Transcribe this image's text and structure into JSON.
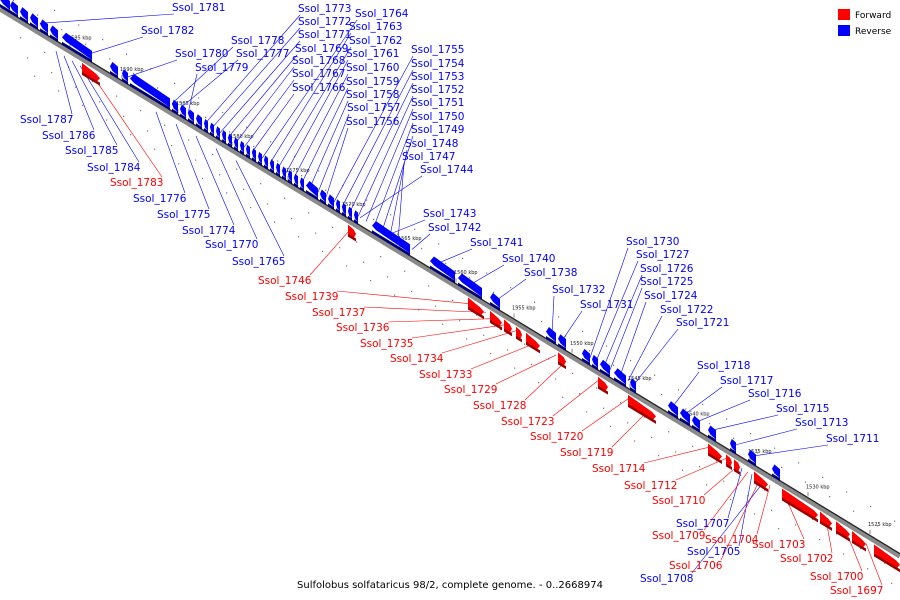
{
  "caption": "Sulfolobus solfataricus 98/2, complete genome. - 0..2668974",
  "legend": [
    {
      "label": "Forward",
      "color": "#ff0000"
    },
    {
      "label": "Reverse",
      "color": "#0000ff"
    }
  ],
  "colors": {
    "forward": "#ff0000",
    "reverse": "#0000ff",
    "line": "#888888"
  },
  "ticks": [
    "1595 kbp",
    "1590 kbp",
    "1585 kbp",
    "1580 kbp",
    "1575 kbp",
    "1570 kbp",
    "1565 kbp",
    "1560 kbp",
    "1555 kbp",
    "1550 kbp",
    "1545 kbp",
    "1540 kbp",
    "1535 kbp",
    "1530 kbp",
    "1525 kbp"
  ],
  "genes_above": [
    {
      "name": "Ssol_1781",
      "strand": "reverse"
    },
    {
      "name": "Ssol_1782",
      "strand": "reverse"
    },
    {
      "name": "Ssol_1780",
      "strand": "reverse"
    },
    {
      "name": "Ssol_1778",
      "strand": "reverse"
    },
    {
      "name": "Ssol_1777",
      "strand": "reverse"
    },
    {
      "name": "Ssol_1779",
      "strand": "reverse"
    },
    {
      "name": "Ssol_1773",
      "strand": "reverse"
    },
    {
      "name": "Ssol_1772",
      "strand": "reverse"
    },
    {
      "name": "Ssol_1771",
      "strand": "reverse"
    },
    {
      "name": "Ssol_1769",
      "strand": "reverse"
    },
    {
      "name": "Ssol_1768",
      "strand": "reverse"
    },
    {
      "name": "Ssol_1767",
      "strand": "reverse"
    },
    {
      "name": "Ssol_1766",
      "strand": "reverse"
    },
    {
      "name": "Ssol_1764",
      "strand": "reverse"
    },
    {
      "name": "Ssol_1763",
      "strand": "reverse"
    },
    {
      "name": "Ssol_1762",
      "strand": "reverse"
    },
    {
      "name": "Ssol_1761",
      "strand": "reverse"
    },
    {
      "name": "Ssol_1760",
      "strand": "reverse"
    },
    {
      "name": "Ssol_1759",
      "strand": "reverse"
    },
    {
      "name": "Ssol_1758",
      "strand": "reverse"
    },
    {
      "name": "Ssol_1757",
      "strand": "reverse"
    },
    {
      "name": "Ssol_1756",
      "strand": "reverse"
    },
    {
      "name": "Ssol_1755",
      "strand": "reverse"
    },
    {
      "name": "Ssol_1754",
      "strand": "reverse"
    },
    {
      "name": "Ssol_1753",
      "strand": "reverse"
    },
    {
      "name": "Ssol_1752",
      "strand": "reverse"
    },
    {
      "name": "Ssol_1751",
      "strand": "reverse"
    },
    {
      "name": "Ssol_1750",
      "strand": "reverse"
    },
    {
      "name": "Ssol_1749",
      "strand": "reverse"
    },
    {
      "name": "Ssol_1748",
      "strand": "reverse"
    },
    {
      "name": "Ssol_1747",
      "strand": "reverse"
    },
    {
      "name": "Ssol_1744",
      "strand": "reverse"
    },
    {
      "name": "Ssol_1743",
      "strand": "reverse"
    },
    {
      "name": "Ssol_1742",
      "strand": "reverse"
    },
    {
      "name": "Ssol_1741",
      "strand": "reverse"
    },
    {
      "name": "Ssol_1740",
      "strand": "reverse"
    },
    {
      "name": "Ssol_1738",
      "strand": "reverse"
    },
    {
      "name": "Ssol_1732",
      "strand": "reverse"
    },
    {
      "name": "Ssol_1731",
      "strand": "reverse"
    },
    {
      "name": "Ssol_1730",
      "strand": "reverse"
    },
    {
      "name": "Ssol_1727",
      "strand": "reverse"
    },
    {
      "name": "Ssol_1726",
      "strand": "reverse"
    },
    {
      "name": "Ssol_1725",
      "strand": "reverse"
    },
    {
      "name": "Ssol_1724",
      "strand": "reverse"
    },
    {
      "name": "Ssol_1722",
      "strand": "reverse"
    },
    {
      "name": "Ssol_1721",
      "strand": "reverse"
    },
    {
      "name": "Ssol_1718",
      "strand": "reverse"
    },
    {
      "name": "Ssol_1717",
      "strand": "reverse"
    },
    {
      "name": "Ssol_1716",
      "strand": "reverse"
    },
    {
      "name": "Ssol_1715",
      "strand": "reverse"
    },
    {
      "name": "Ssol_1713",
      "strand": "reverse"
    },
    {
      "name": "Ssol_1711",
      "strand": "reverse"
    }
  ],
  "genes_below": [
    {
      "name": "Ssol_1787",
      "strand": "reverse"
    },
    {
      "name": "Ssol_1786",
      "strand": "reverse"
    },
    {
      "name": "Ssol_1785",
      "strand": "reverse"
    },
    {
      "name": "Ssol_1784",
      "strand": "reverse"
    },
    {
      "name": "Ssol_1783",
      "strand": "forward"
    },
    {
      "name": "Ssol_1776",
      "strand": "reverse"
    },
    {
      "name": "Ssol_1775",
      "strand": "reverse"
    },
    {
      "name": "Ssol_1774",
      "strand": "reverse"
    },
    {
      "name": "Ssol_1770",
      "strand": "reverse"
    },
    {
      "name": "Ssol_1765",
      "strand": "reverse"
    },
    {
      "name": "Ssol_1746",
      "strand": "forward"
    },
    {
      "name": "Ssol_1739",
      "strand": "forward"
    },
    {
      "name": "Ssol_1737",
      "strand": "forward"
    },
    {
      "name": "Ssol_1736",
      "strand": "forward"
    },
    {
      "name": "Ssol_1735",
      "strand": "forward"
    },
    {
      "name": "Ssol_1734",
      "strand": "forward"
    },
    {
      "name": "Ssol_1733",
      "strand": "forward"
    },
    {
      "name": "Ssol_1729",
      "strand": "forward"
    },
    {
      "name": "Ssol_1728",
      "strand": "forward"
    },
    {
      "name": "Ssol_1723",
      "strand": "forward"
    },
    {
      "name": "Ssol_1720",
      "strand": "forward"
    },
    {
      "name": "Ssol_1719",
      "strand": "forward"
    },
    {
      "name": "Ssol_1714",
      "strand": "forward"
    },
    {
      "name": "Ssol_1712",
      "strand": "forward"
    },
    {
      "name": "Ssol_1710",
      "strand": "forward"
    },
    {
      "name": "Ssol_1707",
      "strand": "reverse"
    },
    {
      "name": "Ssol_1709",
      "strand": "forward"
    },
    {
      "name": "Ssol_1705",
      "strand": "reverse"
    },
    {
      "name": "Ssol_1704",
      "strand": "forward"
    },
    {
      "name": "Ssol_1706",
      "strand": "forward"
    },
    {
      "name": "Ssol_1708",
      "strand": "reverse"
    },
    {
      "name": "Ssol_1703",
      "strand": "forward"
    },
    {
      "name": "Ssol_1702",
      "strand": "forward"
    },
    {
      "name": "Ssol_1700",
      "strand": "forward"
    },
    {
      "name": "Ssol_1697",
      "strand": "forward"
    }
  ]
}
